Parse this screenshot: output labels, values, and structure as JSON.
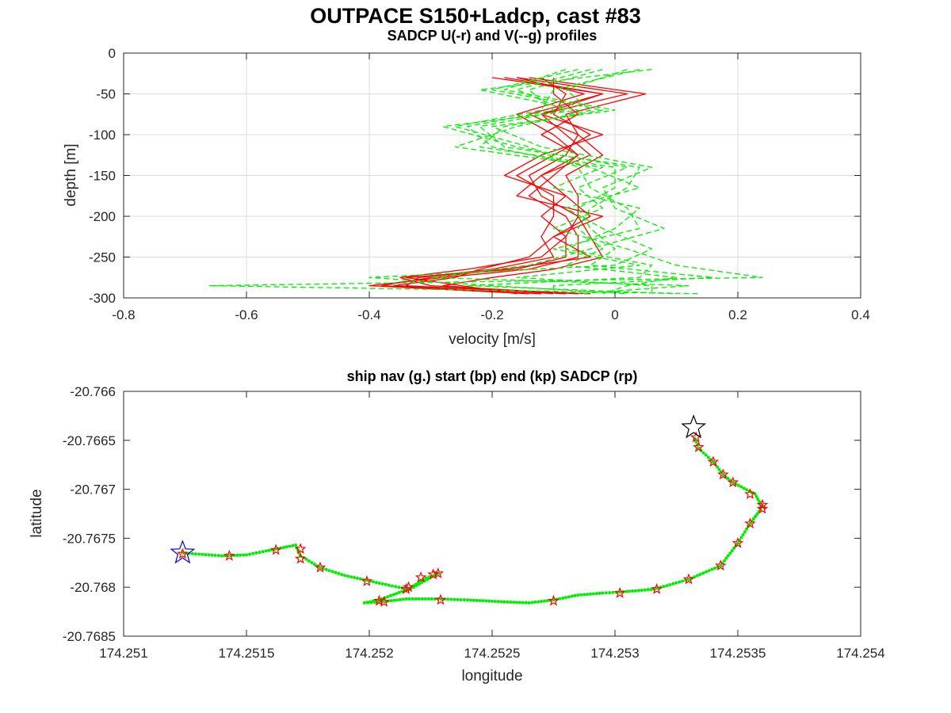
{
  "figure": {
    "title": "OUTPACE S150+Ladcp, cast #83"
  },
  "chart_data": [
    {
      "type": "line",
      "title": "SADCP U(-r) and V(--g) profiles",
      "xlabel": "velocity [m/s]",
      "ylabel": "depth [m]",
      "xlim": [
        -0.8,
        0.4
      ],
      "ylim": [
        -300,
        0
      ],
      "xticks": [
        -0.8,
        -0.6,
        -0.4,
        -0.2,
        0,
        0.2,
        0.4
      ],
      "yticks": [
        0,
        -50,
        -100,
        -150,
        -200,
        -250,
        -300
      ],
      "xtick_labels": [
        "-0.8",
        "-0.6",
        "-0.4",
        "-0.2",
        "0",
        "0.2",
        "0.4"
      ],
      "ytick_labels": [
        "0",
        "-50",
        "-100",
        "-150",
        "-200",
        "-250",
        "-300"
      ],
      "grid": true,
      "series": [
        {
          "color": "#ff0000",
          "dash": "solid",
          "depth": [
            -30,
            -50,
            -75,
            -100,
            -125,
            -150,
            -175,
            -200,
            -225,
            -250,
            -265,
            -275,
            -285,
            -295
          ],
          "profiles": [
            [
              -0.18,
              -0.02,
              -0.12,
              -0.08,
              -0.04,
              -0.12,
              -0.08,
              -0.04,
              -0.1,
              -0.04,
              -0.18,
              -0.3,
              -0.38,
              -0.12
            ],
            [
              -0.14,
              0.05,
              -0.08,
              -0.06,
              -0.08,
              -0.14,
              -0.12,
              -0.06,
              -0.08,
              -0.12,
              -0.24,
              -0.35,
              -0.3,
              -0.06
            ],
            [
              -0.16,
              -0.05,
              -0.16,
              -0.1,
              -0.06,
              -0.1,
              -0.14,
              -0.08,
              -0.06,
              -0.06,
              -0.14,
              -0.28,
              -0.4,
              -0.14
            ],
            [
              -0.12,
              -0.08,
              -0.1,
              -0.04,
              -0.1,
              -0.16,
              -0.1,
              -0.1,
              -0.12,
              -0.1,
              -0.2,
              -0.32,
              -0.34,
              -0.08
            ],
            [
              -0.2,
              -0.02,
              -0.14,
              -0.06,
              -0.02,
              -0.08,
              -0.06,
              -0.06,
              -0.04,
              -0.02,
              -0.1,
              -0.2,
              -0.28,
              -0.1
            ],
            [
              -0.1,
              -0.1,
              -0.06,
              -0.12,
              -0.06,
              -0.12,
              -0.16,
              -0.02,
              -0.1,
              -0.14,
              -0.22,
              -0.26,
              -0.36,
              -0.04
            ],
            [
              -0.16,
              0.02,
              -0.12,
              -0.02,
              -0.12,
              -0.18,
              -0.08,
              -0.12,
              -0.08,
              -0.08,
              -0.16,
              -0.34,
              -0.25,
              -0.16
            ]
          ]
        },
        {
          "color": "#00ee00",
          "dash": "dashed",
          "depth": [
            -20,
            -45,
            -70,
            -90,
            -115,
            -140,
            -165,
            -190,
            -215,
            -240,
            -260,
            -275,
            -285,
            -295
          ],
          "profiles": [
            [
              0.06,
              -0.22,
              -0.06,
              -0.28,
              -0.16,
              0.02,
              -0.06,
              -0.02,
              -0.1,
              0.02,
              0.1,
              0.24,
              -0.66,
              0.14
            ],
            [
              -0.02,
              -0.14,
              -0.1,
              -0.24,
              -0.2,
              -0.04,
              0.04,
              -0.08,
              -0.02,
              0.06,
              0.0,
              -0.4,
              -0.2,
              0.02
            ],
            [
              -0.08,
              -0.18,
              0.0,
              -0.2,
              -0.12,
              0.06,
              -0.02,
              0.0,
              0.08,
              -0.04,
              -0.14,
              -0.3,
              0.12,
              -0.06
            ],
            [
              0.02,
              -0.08,
              -0.04,
              -0.16,
              -0.26,
              -0.02,
              -0.1,
              0.04,
              0.0,
              -0.08,
              0.06,
              0.04,
              -0.24,
              0.1
            ],
            [
              -0.04,
              -0.16,
              -0.08,
              -0.22,
              -0.18,
              0.04,
              0.02,
              -0.04,
              -0.06,
              -0.02,
              -0.08,
              0.1,
              0.02,
              -0.02
            ],
            [
              0.04,
              -0.1,
              -0.12,
              -0.26,
              -0.14,
              -0.06,
              -0.04,
              0.02,
              0.04,
              -0.1,
              0.04,
              -0.16,
              0.06,
              0.06
            ],
            [
              -0.06,
              -0.2,
              -0.02,
              -0.18,
              -0.22,
              0.0,
              0.0,
              -0.06,
              -0.04,
              0.0,
              -0.04,
              0.16,
              -0.1,
              -0.1
            ]
          ]
        }
      ]
    },
    {
      "type": "scatter",
      "title": "ship nav (g.) start (bp) end (kp) SADCP (rp)",
      "xlabel": "longitude",
      "ylabel": "latitude",
      "xlim": [
        174.251,
        174.254
      ],
      "ylim": [
        -20.7685,
        -20.766
      ],
      "xticks": [
        174.251,
        174.2515,
        174.252,
        174.2525,
        174.253,
        174.2535,
        174.254
      ],
      "yticks": [
        -20.766,
        -20.7665,
        -20.767,
        -20.7675,
        -20.768,
        -20.7685
      ],
      "xtick_labels": [
        "174.251",
        "174.2515",
        "174.252",
        "174.2525",
        "174.253",
        "174.2535",
        "174.254"
      ],
      "ytick_labels": [
        "-20.766",
        "-20.7665",
        "-20.767",
        "-20.7675",
        "-20.768",
        "-20.7685"
      ],
      "grid": false,
      "ship_track": [
        [
          174.25124,
          -20.76765
        ],
        [
          174.2514,
          -20.76768
        ],
        [
          174.2515,
          -20.76767
        ],
        [
          174.25158,
          -20.76763
        ],
        [
          174.25164,
          -20.7676
        ],
        [
          174.2517,
          -20.76757
        ],
        [
          174.25172,
          -20.76768
        ],
        [
          174.2518,
          -20.7678
        ],
        [
          174.2519,
          -20.76788
        ],
        [
          174.25199,
          -20.76793
        ],
        [
          174.25208,
          -20.76798
        ],
        [
          174.25216,
          -20.76802
        ],
        [
          174.25222,
          -20.76792
        ],
        [
          174.25228,
          -20.76786
        ],
        [
          174.25218,
          -20.768
        ],
        [
          174.25204,
          -20.76813
        ],
        [
          174.25198,
          -20.76816
        ],
        [
          174.25205,
          -20.76815
        ],
        [
          174.25215,
          -20.76812
        ],
        [
          174.25228,
          -20.76812
        ],
        [
          174.2524,
          -20.76813
        ],
        [
          174.25255,
          -20.76815
        ],
        [
          174.25265,
          -20.76816
        ],
        [
          174.25275,
          -20.76813
        ],
        [
          174.25285,
          -20.76808
        ],
        [
          174.25295,
          -20.76806
        ],
        [
          174.25302,
          -20.76805
        ],
        [
          174.25316,
          -20.76802
        ],
        [
          174.2533,
          -20.76792
        ],
        [
          174.25343,
          -20.76778
        ],
        [
          174.2535,
          -20.76755
        ],
        [
          174.25355,
          -20.76735
        ],
        [
          174.2536,
          -20.76718
        ],
        [
          174.25357,
          -20.76705
        ],
        [
          174.25348,
          -20.76693
        ],
        [
          174.25344,
          -20.76685
        ],
        [
          174.2534,
          -20.76672
        ],
        [
          174.25334,
          -20.76658
        ],
        [
          174.25332,
          -20.76645
        ]
      ],
      "sadcp_points": [
        [
          174.25124,
          -20.76766
        ],
        [
          174.25143,
          -20.76768
        ],
        [
          174.25162,
          -20.76762
        ],
        [
          174.25172,
          -20.76761
        ],
        [
          174.25172,
          -20.76771
        ],
        [
          174.2518,
          -20.7678
        ],
        [
          174.25199,
          -20.76794
        ],
        [
          174.25215,
          -20.76802
        ],
        [
          174.25216,
          -20.768
        ],
        [
          174.25221,
          -20.7679
        ],
        [
          174.25226,
          -20.76787
        ],
        [
          174.25228,
          -20.76786
        ],
        [
          174.25204,
          -20.76814
        ],
        [
          174.25206,
          -20.76815
        ],
        [
          174.25229,
          -20.76813
        ],
        [
          174.25275,
          -20.76814
        ],
        [
          174.25302,
          -20.76806
        ],
        [
          174.25317,
          -20.76802
        ],
        [
          174.2533,
          -20.76792
        ],
        [
          174.25343,
          -20.76778
        ],
        [
          174.2535,
          -20.76755
        ],
        [
          174.25355,
          -20.76735
        ],
        [
          174.2536,
          -20.7672
        ],
        [
          174.2536,
          -20.76716
        ],
        [
          174.25355,
          -20.76705
        ],
        [
          174.25348,
          -20.76693
        ],
        [
          174.25344,
          -20.76685
        ],
        [
          174.2534,
          -20.76672
        ],
        [
          174.25334,
          -20.76657
        ],
        [
          174.25333,
          -20.76647
        ]
      ],
      "start_point": [
        174.25124,
        -20.76765
      ],
      "end_point": [
        174.25332,
        -20.76637
      ],
      "colors": {
        "nav": "#00ee00",
        "start": "#0000cc",
        "end": "#000000",
        "sadcp": "#ff0000"
      }
    }
  ]
}
